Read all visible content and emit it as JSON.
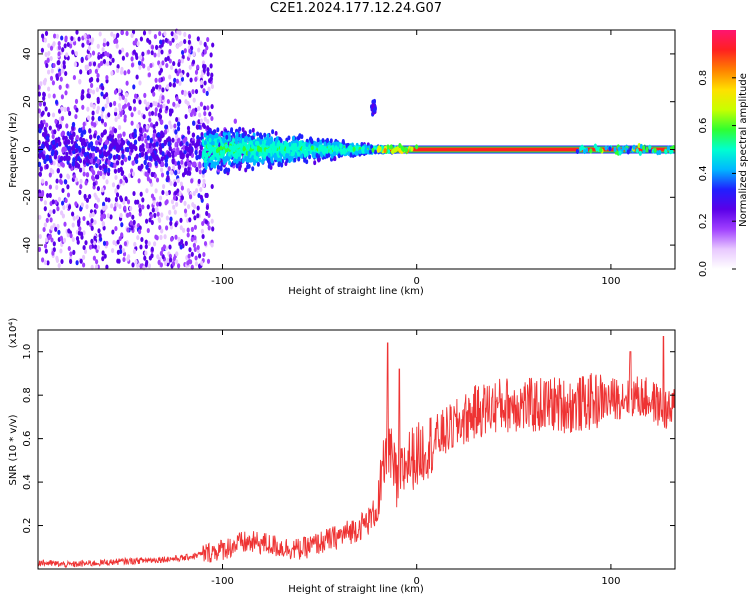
{
  "title": "C2E1.2024.177.12.24.G07",
  "chart_data": [
    {
      "type": "heatmap",
      "xlabel": "Height of straight line (km)",
      "ylabel": "Frequency (Hz)",
      "xlim": [
        -195,
        133
      ],
      "ylim": [
        -50,
        50
      ],
      "xticks": [
        -100,
        0,
        100
      ],
      "xtick_labels": [
        "-100",
        "0",
        "100"
      ],
      "yticks": [
        -40,
        -20,
        0,
        20,
        40
      ],
      "ytick_labels": [
        "-40",
        "-20",
        "0",
        "20",
        "40"
      ],
      "colorbar": {
        "label": "Normalized spectral amplitude",
        "range": [
          0,
          1
        ],
        "ticks": [
          0,
          0.2,
          0.4,
          0.6,
          0.8
        ],
        "tick_labels": [
          "0.0",
          "0.2",
          "0.4",
          "0.6",
          "0.8"
        ],
        "colors": [
          "#ffffff",
          "#e8c8ff",
          "#a040ff",
          "#5a00e8",
          "#2020ff",
          "#00b8ff",
          "#00ffd0",
          "#30ff30",
          "#c8ff00",
          "#ffe000",
          "#ff8000",
          "#ff2020",
          "#ff1470"
        ]
      },
      "features": [
        {
          "name": "low-altitude broadband noise",
          "x_range": [
            -195,
            -105
          ],
          "freq_spread": 50,
          "amplitude": 0.25
        },
        {
          "name": "narrowing spectral band",
          "x_range": [
            -105,
            -15
          ],
          "freq_spread": 12,
          "amplitude": 0.45
        },
        {
          "name": "carrier line",
          "x_range": [
            -15,
            133
          ],
          "frequency": 0,
          "amplitude": 0.95
        },
        {
          "name": "spike near -22 km",
          "x": -22,
          "frequency": 18,
          "amplitude": 0.3
        }
      ]
    },
    {
      "type": "line",
      "xlabel": "Height of straight line (km)",
      "ylabel": "SNR (10 * v/v)",
      "y_scale_label": "(x10⁴)",
      "xlim": [
        -195,
        133
      ],
      "ylim": [
        0,
        1.1
      ],
      "xticks": [
        -100,
        0,
        100
      ],
      "xtick_labels": [
        "-100",
        "0",
        "100"
      ],
      "yticks": [
        0.2,
        0.4,
        0.6,
        0.8,
        1.0
      ],
      "ytick_labels": [
        "0.2",
        "0.4",
        "0.6",
        "0.8",
        "1.0"
      ],
      "color": "#ee3333",
      "x": [
        -195,
        -180,
        -160,
        -140,
        -120,
        -110,
        -100,
        -90,
        -80,
        -70,
        -60,
        -50,
        -40,
        -30,
        -25,
        -20,
        -17,
        -15,
        -10,
        -5,
        0,
        10,
        20,
        30,
        40,
        50,
        60,
        70,
        80,
        90,
        100,
        110,
        120,
        125,
        130,
        133
      ],
      "y": [
        0.03,
        0.02,
        0.03,
        0.04,
        0.05,
        0.07,
        0.09,
        0.12,
        0.12,
        0.1,
        0.09,
        0.12,
        0.15,
        0.19,
        0.22,
        0.28,
        0.45,
        0.58,
        0.38,
        0.5,
        0.52,
        0.6,
        0.66,
        0.72,
        0.75,
        0.76,
        0.75,
        0.76,
        0.75,
        0.77,
        0.78,
        0.8,
        0.78,
        0.75,
        0.72,
        0.75
      ],
      "spikes": [
        [
          -15,
          1.04
        ],
        [
          -9,
          0.92
        ],
        [
          110,
          1.0
        ],
        [
          127,
          1.07
        ]
      ]
    }
  ]
}
